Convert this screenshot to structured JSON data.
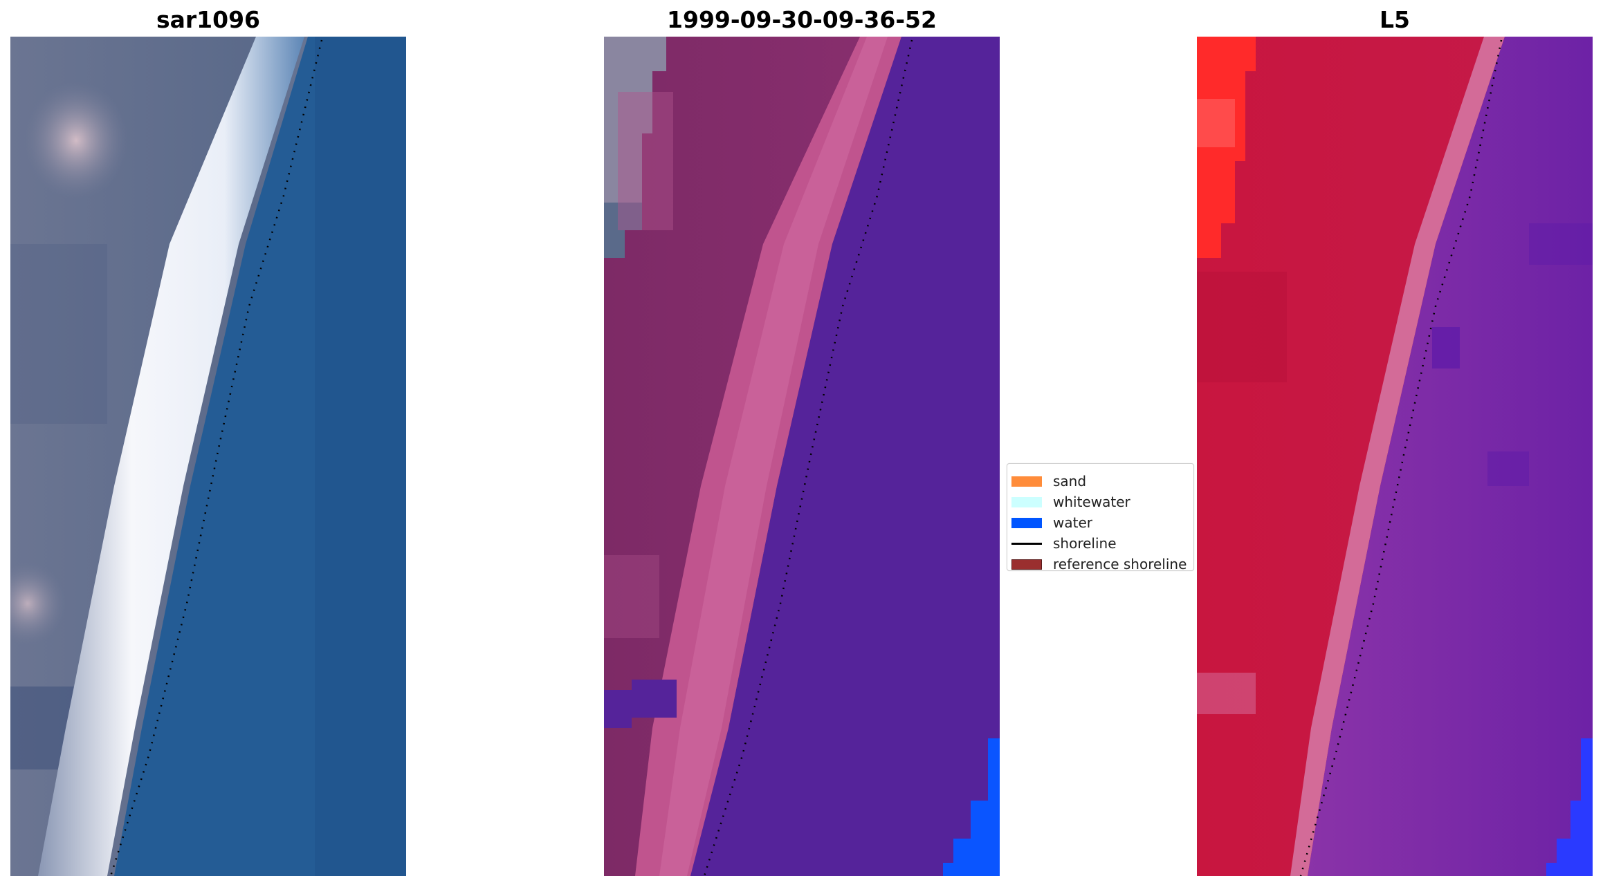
{
  "panels": [
    {
      "title": "sar1096"
    },
    {
      "title": "1999-09-30-09-36-52"
    },
    {
      "title": "L5"
    }
  ],
  "legend": {
    "items": [
      {
        "label": "sand",
        "color": "#ff8c3a",
        "kind": "patch"
      },
      {
        "label": "whitewater",
        "color": "#ccffff",
        "kind": "patch"
      },
      {
        "label": "water",
        "color": "#0055ff",
        "kind": "patch"
      },
      {
        "label": "shoreline",
        "color": "#000000",
        "kind": "line"
      },
      {
        "label": "reference shoreline",
        "color": "#9a2f2f",
        "kind": "patch"
      }
    ]
  },
  "colors": {
    "sar_water": "#245c95",
    "sar_land": "#5e6e8c",
    "sar_whitewater": "#f4f6fb",
    "class_land": "#7a2a62",
    "class_beach": "#c95a95",
    "class_water": "#55239a",
    "class_water_edge": "#0a55ff",
    "l5_land": "#c81642",
    "l5_beach": "#d76a95",
    "l5_water": "#7b2aa3",
    "l5_hot": "#ff2a2a"
  }
}
